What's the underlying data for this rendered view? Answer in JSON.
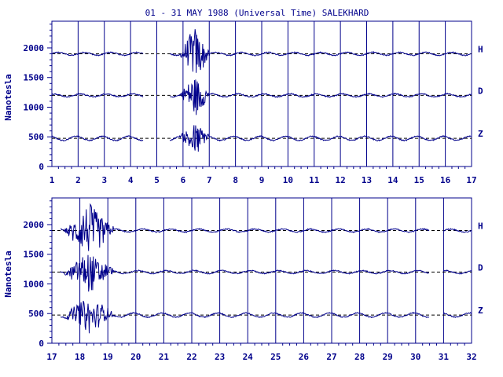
{
  "chart_data": {
    "type": "line",
    "title": "01 - 31 MAY 1988 (Universal Time) SALEKHARD",
    "ylabel": "Nanotesla",
    "ylim": [
      0,
      2450
    ],
    "y_ticks": [
      0,
      500,
      1000,
      1500,
      2000
    ],
    "grid": "vertical lines at each day",
    "colors": {
      "line": "#00008b",
      "baseline": "#000000"
    },
    "components": [
      {
        "name": "H",
        "baseline": 1900
      },
      {
        "name": "D",
        "baseline": 1200
      },
      {
        "name": "Z",
        "baseline": 475
      }
    ],
    "panels": [
      {
        "name": "top",
        "x_range": [
          1,
          17
        ],
        "x_ticks": [
          "1",
          "2",
          "3",
          "4",
          "5",
          "6",
          "7",
          "8",
          "9",
          "10",
          "11",
          "12",
          "13",
          "14",
          "15",
          "16",
          "17"
        ]
      },
      {
        "name": "bottom",
        "x_range": [
          17,
          32
        ],
        "x_ticks": [
          "17",
          "18",
          "19",
          "20",
          "21",
          "22",
          "23",
          "24",
          "25",
          "26",
          "27",
          "28",
          "29",
          "30",
          "31",
          "32"
        ]
      }
    ],
    "data_gaps_days": [
      [
        4.5,
        5.5
      ],
      [
        17.0,
        17.3
      ],
      [
        30.5,
        31.0
      ]
    ],
    "disturbed_intervals_days": [
      [
        5.8,
        7.0
      ],
      [
        17.3,
        19.2
      ]
    ]
  }
}
